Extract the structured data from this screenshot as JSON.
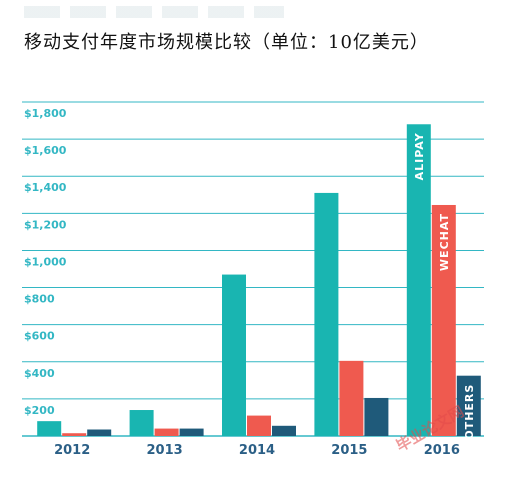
{
  "title": "移动支付年度市场规模比较（单位：10亿美元）",
  "watermark": "毕业论文网",
  "colors": {
    "alipay": "#19b5b1",
    "wechat": "#ef5a4f",
    "others": "#1f5a7a",
    "grid": "#33b7c4",
    "axis_text": "#33b7c4",
    "category_text": "#2b5f86"
  },
  "chart_data": {
    "type": "bar",
    "title": "移动支付年度市场规模比较（单位：10亿美元）",
    "categories": [
      "2012",
      "2013",
      "2014",
      "2015",
      "2016"
    ],
    "series": [
      {
        "name": "ALIPAY",
        "values": [
          80,
          140,
          870,
          1310,
          1680
        ]
      },
      {
        "name": "WECHAT",
        "values": [
          15,
          40,
          110,
          405,
          1245
        ]
      },
      {
        "name": "OTHERS",
        "values": [
          35,
          40,
          55,
          205,
          325
        ]
      }
    ],
    "y_ticks": [
      "$200",
      "$400",
      "$600",
      "$800",
      "$1,000",
      "$1,200",
      "$1,400",
      "$1,600",
      "$1,800"
    ],
    "ylim": [
      0,
      1800
    ],
    "grid": true,
    "xlabel": "",
    "ylabel": ""
  }
}
